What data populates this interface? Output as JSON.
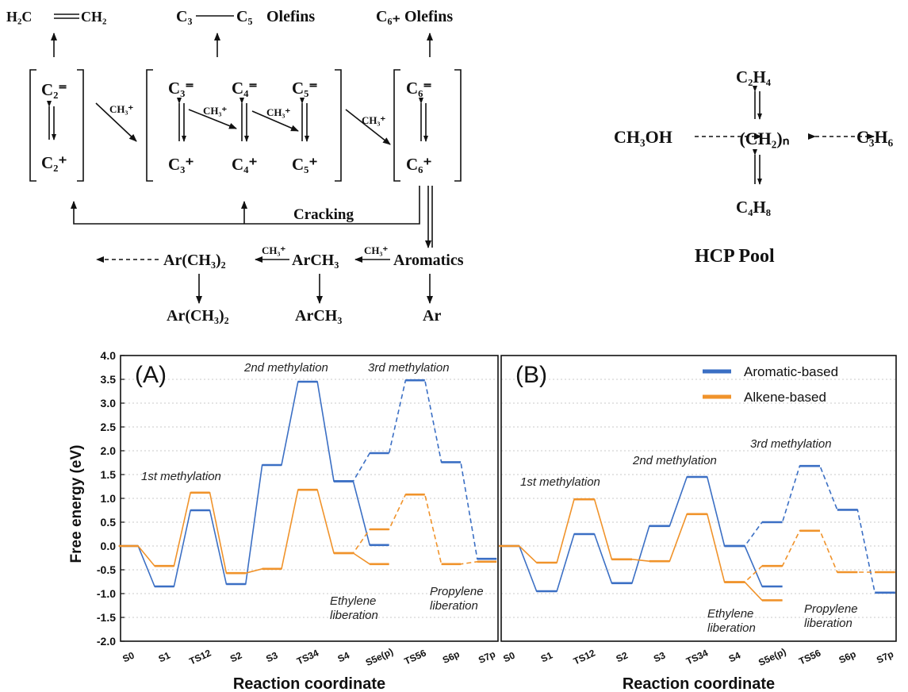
{
  "scheme": {
    "top_products": {
      "ethylene_left": "H₂C",
      "ethylene_right": "CH₂",
      "c3c5_left": "C₃",
      "c3c5_right": "C₅",
      "c3c5_suffix": "Olefins",
      "c6_products": "C₆₊ Olefins"
    },
    "species": {
      "c2_olefin": "C₂⁼",
      "c2_cation": "C₂⁺",
      "c3_olefin": "C₃⁼",
      "c3_cation": "C₃⁺",
      "c4_olefin": "C₄⁼",
      "c4_cation": "C₄⁺",
      "c5_olefin": "C₅⁼",
      "c5_cation": "C₅⁺",
      "c6_olefin": "C₆⁼",
      "c6_cation": "C₆⁺"
    },
    "methyl_cation": "CH₃⁺",
    "cracking_label": "Cracking",
    "aromatic_cycle": {
      "aromatics": "Aromatics",
      "arch3": "ArCH₃",
      "ar_ch3_2": "Ar(CH₃)₂",
      "ar": "Ar",
      "arch3_out": "ArCH₃",
      "ar_ch3_2_out": "Ar(CH₃)₂"
    },
    "hcp_pool": {
      "c2h4": "C₂H₄",
      "ch3oh": "CH₃OH",
      "ch2n": "(CH₂)ₙ",
      "c3h6": "C₃H₆",
      "c4h8": "C₄H₈",
      "title": "HCP Pool"
    }
  },
  "chart_data": [
    {
      "type": "line",
      "panel_label": "(A)",
      "xlabel": "Reaction coordinate",
      "ylabel": "Free energy (eV)",
      "ylim": [
        -2.0,
        4.0
      ],
      "yticks": [
        "4.0",
        "3.5",
        "3.0",
        "2.5",
        "2.0",
        "1.5",
        "1.0",
        "0.5",
        "0.0",
        "-0.5",
        "-1.0",
        "-1.5",
        "-2.0"
      ],
      "categories": [
        "S0",
        "S1",
        "TS12",
        "S2",
        "S3",
        "TS34",
        "S4",
        "S5e(p)",
        "TS56",
        "S6p",
        "S7p"
      ],
      "series": [
        {
          "name": "Aromatic-based",
          "color": "#3b6fc4",
          "values": [
            0.0,
            -0.85,
            0.75,
            -0.8,
            1.7,
            3.45,
            1.36,
            0.02,
            null,
            null,
            -0.27
          ],
          "dashed_branch": [
            null,
            null,
            null,
            null,
            null,
            null,
            1.36,
            1.95,
            3.48,
            1.76,
            -0.27
          ]
        },
        {
          "name": "Alkene-based",
          "color": "#f0932b",
          "values": [
            0.0,
            -0.42,
            1.12,
            -0.57,
            -0.48,
            1.18,
            -0.15,
            -0.38,
            null,
            null,
            -0.33
          ],
          "dashed_branch": [
            null,
            null,
            null,
            null,
            null,
            null,
            -0.15,
            0.35,
            1.08,
            -0.38,
            -0.33
          ]
        }
      ],
      "annotations": {
        "m1": "1st methylation",
        "m2": "2nd methylation",
        "m3": "3rd methylation",
        "eth1": "Ethylene",
        "eth2": "liberation",
        "prop1": "Propylene",
        "prop2": "liberation"
      }
    },
    {
      "type": "line",
      "panel_label": "(B)",
      "xlabel": "Reaction coordinate",
      "categories": [
        "S0",
        "S1",
        "TS12",
        "S2",
        "S3",
        "TS34",
        "S4",
        "S5e(p)",
        "TS56",
        "S6p",
        "S7p"
      ],
      "legend_position": "top-right",
      "series": [
        {
          "name": "Aromatic-based",
          "color": "#3b6fc4",
          "values": [
            0.0,
            -0.95,
            0.25,
            -0.78,
            0.42,
            1.45,
            0.0,
            -0.85,
            null,
            null,
            -0.98
          ],
          "dashed_branch": [
            null,
            null,
            null,
            null,
            null,
            null,
            0.0,
            0.5,
            1.68,
            0.76,
            -0.98
          ]
        },
        {
          "name": "Alkene-based",
          "color": "#f0932b",
          "values": [
            0.0,
            -0.35,
            0.98,
            -0.28,
            -0.32,
            0.67,
            -0.76,
            -1.14,
            null,
            null,
            -0.55
          ],
          "dashed_branch": [
            null,
            null,
            null,
            null,
            null,
            null,
            -0.76,
            -0.42,
            0.32,
            -0.55,
            -0.55
          ]
        }
      ],
      "annotations": {
        "m1": "1st methylation",
        "m2": "2nd methylation",
        "m3": "3rd methylation",
        "eth1": "Ethylene",
        "eth2": "liberation",
        "prop1": "Propylene",
        "prop2": "liberation"
      }
    }
  ]
}
